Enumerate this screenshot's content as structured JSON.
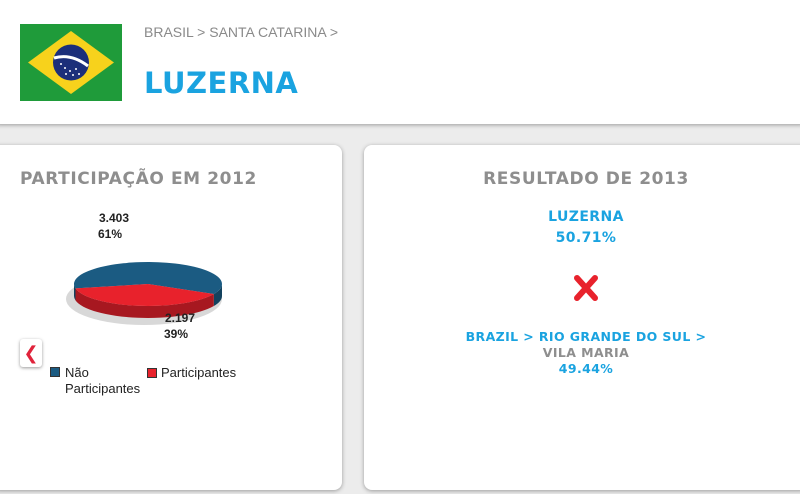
{
  "header": {
    "breadcrumb": "BRASIL > SANTA CATARINA >",
    "title": "LUZERNA",
    "flag_icon": "brazil-flag-icon"
  },
  "participation": {
    "title": "PARTICIPAÇÃO EM 2012",
    "prev_icon": "chevron-left-icon",
    "chart_data": {
      "type": "pie",
      "slices": [
        {
          "label": "Não Participantes",
          "value": 3403,
          "value_label": "3.403",
          "percent_label": "61%",
          "color": "#1b5b82"
        },
        {
          "label": "Participantes",
          "value": 2197,
          "value_label": "2.197",
          "percent_label": "39%",
          "color": "#e8222c"
        }
      ],
      "legend": [
        "Não Participantes",
        "Participantes"
      ],
      "legend_position": "bottom"
    }
  },
  "result": {
    "title": "RESULTADO DE 2013",
    "team_a": {
      "name": "LUZERNA",
      "percent": "50.71%"
    },
    "versus_icon": "x-versus-icon",
    "team_b": {
      "path": "BRAZIL > RIO GRANDE DO SUL >",
      "name": "VILA MARIA",
      "percent": "49.44%"
    }
  },
  "colors": {
    "accent": "#1aa3e0",
    "title_gray": "#8e8e8e",
    "red": "#e8222c",
    "navy": "#1b5b82"
  }
}
